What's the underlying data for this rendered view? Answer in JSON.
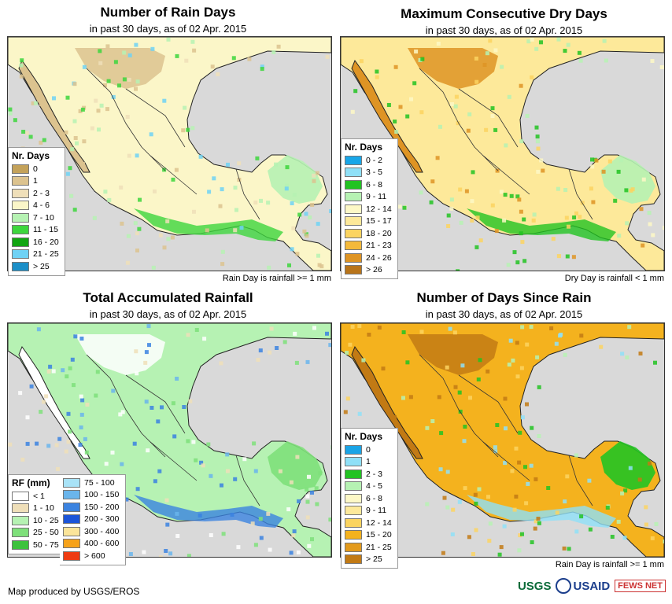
{
  "panels": [
    {
      "title": "Number of Rain Days",
      "subtitle": "in past 30 days, as of 02 Apr. 2015",
      "note": "Rain Day is rainfall >= 1 mm",
      "legend_title": "Nr. Days",
      "legend": [
        {
          "label": "0",
          "color": "#c4a25a"
        },
        {
          "label": "1",
          "color": "#dcc38f"
        },
        {
          "label": "2 - 3",
          "color": "#efdfb9"
        },
        {
          "label": "4 - 6",
          "color": "#fbf6c8"
        },
        {
          "label": "7 - 10",
          "color": "#b6f2b3"
        },
        {
          "label": "11 - 15",
          "color": "#3dd63d"
        },
        {
          "label": "16 - 20",
          "color": "#12a512"
        },
        {
          "label": "21 - 25",
          "color": "#6fd2f5"
        },
        {
          "label": "> 25",
          "color": "#1b8fc8"
        }
      ]
    },
    {
      "title": "Maximum Consecutive Dry Days",
      "subtitle": "in past 30 days, as of 02 Apr. 2015",
      "note": "Dry Day is rainfall < 1 mm",
      "legend_title": "Nr. Days",
      "legend": [
        {
          "label": "0 - 2",
          "color": "#18a6e8"
        },
        {
          "label": "3 - 5",
          "color": "#8fe0f7"
        },
        {
          "label": "6 - 8",
          "color": "#22c322"
        },
        {
          "label": "9 - 11",
          "color": "#b6f2b3"
        },
        {
          "label": "12 - 14",
          "color": "#fdf8c6"
        },
        {
          "label": "15 - 17",
          "color": "#fde99a"
        },
        {
          "label": "18 - 20",
          "color": "#fbd460"
        },
        {
          "label": "21 - 23",
          "color": "#f4b93a"
        },
        {
          "label": "24 - 26",
          "color": "#de9424"
        },
        {
          "label": "> 26",
          "color": "#b8741a"
        }
      ]
    },
    {
      "title": "Total Accumulated Rainfall",
      "subtitle": "in past 30 days, as of 02 Apr. 2015",
      "note": "",
      "legend_title": "RF (mm)",
      "legend": [
        {
          "label": "< 1",
          "color": "#ffffff"
        },
        {
          "label": "1 - 10",
          "color": "#efdfb9"
        },
        {
          "label": "10 - 25",
          "color": "#b6f2b3"
        },
        {
          "label": "25 - 50",
          "color": "#7ee07a"
        },
        {
          "label": "50 - 75",
          "color": "#3dc23d"
        }
      ],
      "legend2": [
        {
          "label": "75 - 100",
          "color": "#a9e3f7"
        },
        {
          "label": "100 - 150",
          "color": "#6ab5ec"
        },
        {
          "label": "150 - 200",
          "color": "#3b83e0"
        },
        {
          "label": "200 - 300",
          "color": "#1c55d8"
        },
        {
          "label": "300 - 400",
          "color": "#fbe59a"
        },
        {
          "label": "400 - 600",
          "color": "#f6a21a"
        },
        {
          "label": "> 600",
          "color": "#ee3b12"
        }
      ]
    },
    {
      "title": "Number of Days Since Rain",
      "subtitle": "in past 30 days, as of 02 Apr. 2015",
      "note": "Rain Day is rainfall >= 1 mm",
      "legend_title": "Nr. Days",
      "legend": [
        {
          "label": "0",
          "color": "#1aa4e6"
        },
        {
          "label": "1",
          "color": "#8fe0f7"
        },
        {
          "label": "2 - 3",
          "color": "#22c322"
        },
        {
          "label": "4 - 5",
          "color": "#b6f2b3"
        },
        {
          "label": "6 - 8",
          "color": "#fdf8c6"
        },
        {
          "label": "9 - 11",
          "color": "#fde99a"
        },
        {
          "label": "12 - 14",
          "color": "#fbd460"
        },
        {
          "label": "15 - 20",
          "color": "#f4b21e"
        },
        {
          "label": "21 - 25",
          "color": "#e39a1c"
        },
        {
          "label": "> 25",
          "color": "#c27a14"
        }
      ]
    }
  ],
  "colors": {
    "ocean": "#d9d9d9",
    "land_p1": "#fbf6c8",
    "land_p2": "#fde99a",
    "land_p3": "#b6f2b3",
    "land_p4": "#f4b21e"
  },
  "footer": "Map produced by USGS/EROS",
  "logos": {
    "usgs": "USGS",
    "usaid": "USAID",
    "fews": "FEWS NET"
  }
}
